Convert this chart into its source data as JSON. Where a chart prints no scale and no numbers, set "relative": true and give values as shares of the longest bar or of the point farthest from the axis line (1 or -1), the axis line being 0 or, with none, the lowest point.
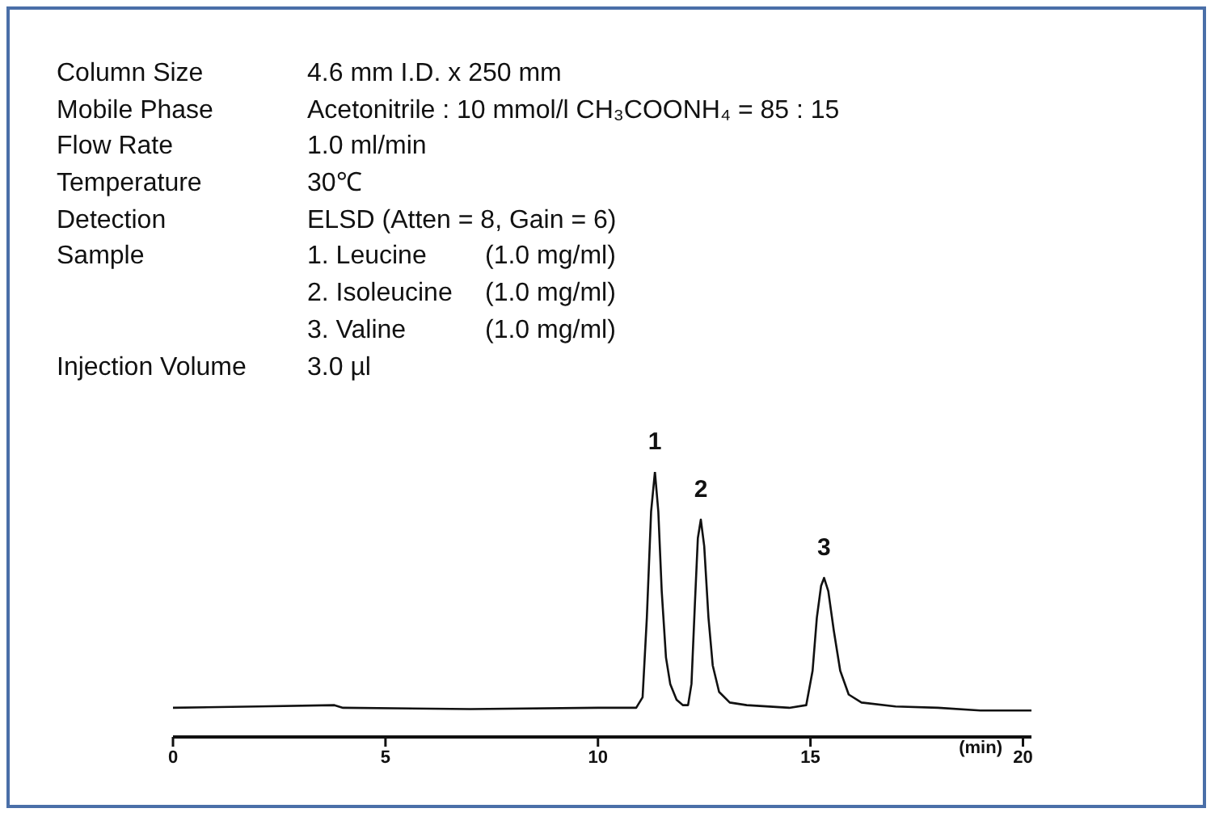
{
  "chart_data": {
    "type": "line",
    "relative": true,
    "xlabel": "(min)",
    "xlim": [
      0,
      20.2
    ],
    "xticks": [
      0,
      5,
      10,
      15,
      20
    ],
    "grid": false,
    "legend": false,
    "marker": "none",
    "line_style": "solid",
    "x": [
      0,
      2,
      3.8,
      4,
      7,
      10,
      10.9,
      11.05,
      11.15,
      11.25,
      11.34,
      11.42,
      11.5,
      11.6,
      11.7,
      11.85,
      12.0,
      12.12,
      12.2,
      12.28,
      12.35,
      12.42,
      12.5,
      12.6,
      12.7,
      12.85,
      13.1,
      13.5,
      14.5,
      14.9,
      15.05,
      15.15,
      15.25,
      15.32,
      15.42,
      15.55,
      15.7,
      15.9,
      16.2,
      17,
      18,
      19,
      20.2
    ],
    "series": [
      {
        "color": "#111111",
        "values": [
          0.11,
          0.115,
          0.12,
          0.11,
          0.105,
          0.11,
          0.11,
          0.15,
          0.45,
          0.85,
          1.0,
          0.85,
          0.55,
          0.3,
          0.2,
          0.14,
          0.12,
          0.12,
          0.2,
          0.5,
          0.75,
          0.82,
          0.72,
          0.45,
          0.27,
          0.17,
          0.13,
          0.12,
          0.11,
          0.12,
          0.25,
          0.45,
          0.57,
          0.6,
          0.55,
          0.4,
          0.25,
          0.16,
          0.13,
          0.115,
          0.11,
          0.1,
          0.1
        ]
      }
    ],
    "annotations": [
      "Column Size\t4.6 mm I.D. x 250 mm",
      "Mobile Phase\tAcetonitrile : 10 mmol/l CH₃COONH₄ = 85 : 15",
      "Flow Rate\t1.0 ml/min",
      "Temperature\t30℃",
      "Detection\tELSD (Atten = 8, Gain = 6)",
      "Sample\t1. Leucine\t(1.0 mg/ml)",
      "\t2. Isoleucine\t(1.0 mg/ml)",
      "\t3. Valine\t(1.0 mg/ml)",
      "Injection Volume\t3.0 µl",
      {
        "text": "1",
        "x": 11.34,
        "y": 1.0
      },
      {
        "text": "2",
        "x": 12.42,
        "y": 0.82
      },
      {
        "text": "3",
        "x": 15.32,
        "y": 0.6
      }
    ]
  }
}
